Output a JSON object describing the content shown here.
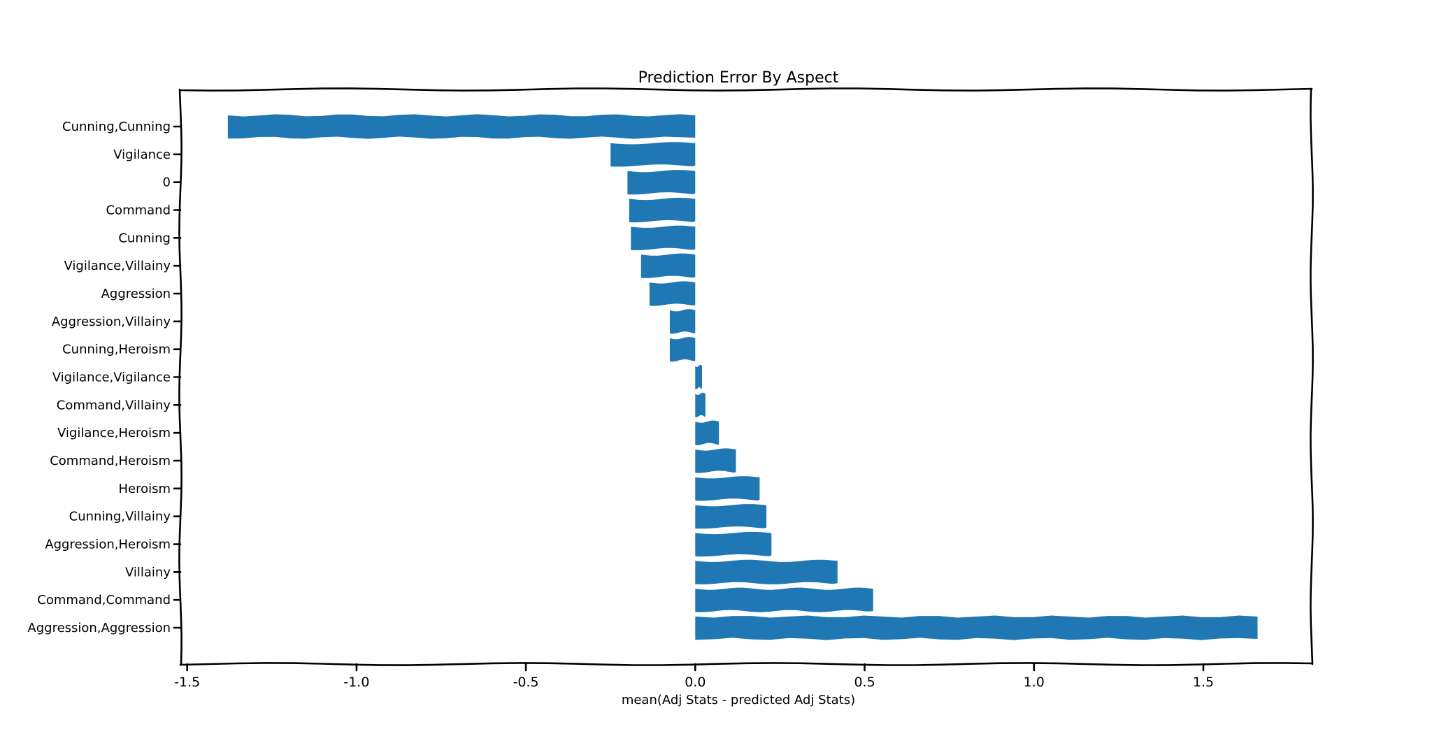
{
  "chart_data": {
    "type": "bar",
    "orientation": "horizontal",
    "title": "Prediction Error By Aspect",
    "xlabel": "mean(Adj Stats - predicted Adj Stats)",
    "ylabel": "",
    "categories": [
      "Cunning,Cunning",
      "Vigilance",
      "0",
      "Command",
      "Cunning",
      "Vigilance,Villainy",
      "Aggression",
      "Aggression,Villainy",
      "Cunning,Heroism",
      "Vigilance,Vigilance",
      "Command,Villainy",
      "Vigilance,Heroism",
      "Command,Heroism",
      "Heroism",
      "Cunning,Villainy",
      "Aggression,Heroism",
      "Villainy",
      "Command,Command",
      "Aggression,Aggression"
    ],
    "values": [
      -1.38,
      -0.25,
      -0.2,
      -0.195,
      -0.19,
      -0.16,
      -0.135,
      -0.075,
      -0.075,
      0.02,
      0.03,
      0.07,
      0.12,
      0.19,
      0.21,
      0.225,
      0.42,
      0.525,
      1.66
    ],
    "xlim": [
      -1.52,
      1.82
    ],
    "xticks": [
      "-1.5",
      "-1.0",
      "-0.5",
      "0.0",
      "0.5",
      "1.0",
      "1.5"
    ],
    "bar_color": "#1f77b4",
    "grid": false,
    "style": "xkcd"
  }
}
